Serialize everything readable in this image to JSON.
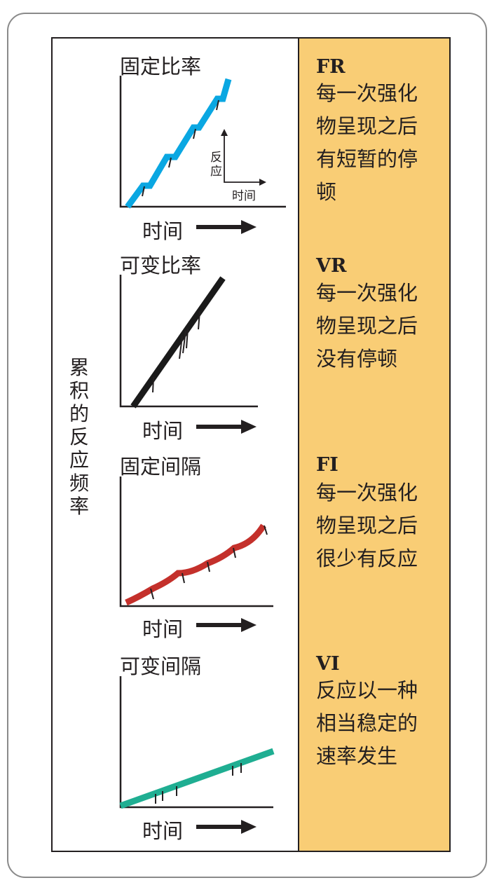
{
  "y_axis_label": "累积的反应频率",
  "x_axis_label": "时间",
  "legend": {
    "y": "反应",
    "x": "时间"
  },
  "schedules": [
    {
      "title": "固定比率",
      "abbr": "FR",
      "desc": [
        "每一次强化",
        "物呈现之后",
        "有短暂的停",
        "顿"
      ],
      "color": "#0aa7e2"
    },
    {
      "title": "可变比率",
      "abbr": "VR",
      "desc": [
        "每一次强化",
        "物呈现之后",
        "没有停顿"
      ],
      "color": "#1a1a1a"
    },
    {
      "title": "固定间隔",
      "abbr": "FI",
      "desc": [
        "每一次强化",
        "物呈现之后",
        "很少有反应"
      ],
      "color": "#c4302b"
    },
    {
      "title": "可变间隔",
      "abbr": "VI",
      "desc": [
        "反应以一种",
        "相当稳定的",
        "速率发生"
      ],
      "color": "#1fae92"
    }
  ]
}
